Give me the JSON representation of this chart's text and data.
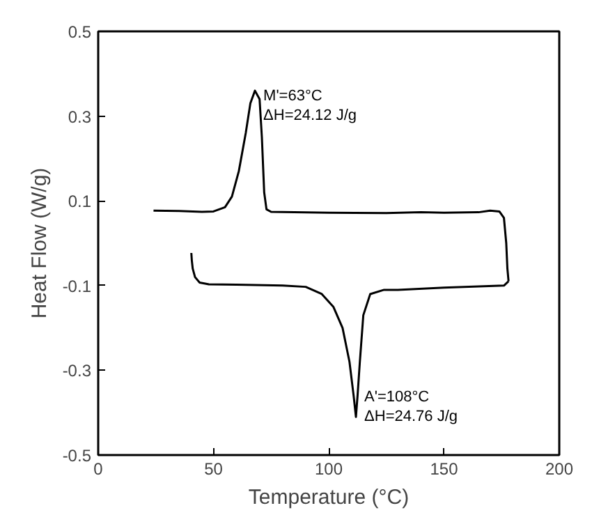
{
  "chart_data": {
    "type": "line",
    "xlabel": "Temperature (°C)",
    "ylabel": "Heat Flow (W/g)",
    "xlim": [
      0,
      200
    ],
    "ylim": [
      -0.5,
      0.5
    ],
    "xticks": [
      0,
      50,
      100,
      150,
      200
    ],
    "yticks": [
      -0.5,
      -0.3,
      -0.1,
      0.1,
      0.3,
      0.5
    ],
    "grid": false,
    "marker": "none",
    "line_style": "solid",
    "series": [
      {
        "color": "#000000",
        "x": [
          24,
          35,
          45,
          50,
          55,
          58,
          61,
          64,
          66,
          68,
          70,
          71,
          72,
          73,
          75,
          100,
          125,
          140,
          150,
          165,
          170,
          174,
          176,
          177,
          177.5,
          178
        ],
        "values": [
          0.077,
          0.076,
          0.074,
          0.075,
          0.085,
          0.11,
          0.17,
          0.26,
          0.33,
          0.36,
          0.34,
          0.25,
          0.12,
          0.08,
          0.074,
          0.072,
          0.071,
          0.073,
          0.072,
          0.073,
          0.077,
          0.075,
          0.06,
          0.0,
          -0.06,
          -0.09
        ]
      },
      {
        "color": "#000000",
        "x": [
          178,
          176,
          150,
          130,
          124,
          118,
          115,
          113.5,
          112.5,
          111.8,
          110.8,
          109,
          106,
          102,
          97,
          90,
          80,
          60,
          48,
          44,
          42,
          41,
          40.6,
          40.4
        ],
        "values": [
          -0.09,
          -0.1,
          -0.105,
          -0.11,
          -0.11,
          -0.12,
          -0.17,
          -0.28,
          -0.36,
          -0.41,
          -0.36,
          -0.28,
          -0.2,
          -0.15,
          -0.12,
          -0.103,
          -0.1,
          -0.098,
          -0.097,
          -0.093,
          -0.08,
          -0.06,
          -0.04,
          -0.023
        ]
      }
    ],
    "annotations": [
      {
        "text": "M'=63°C\nΔH=24.12 J/g",
        "x": 68,
        "y": 0.36
      },
      {
        "text": "A'=108°C\nΔH=24.76 J/g",
        "x": 111.8,
        "y": -0.41
      }
    ]
  }
}
